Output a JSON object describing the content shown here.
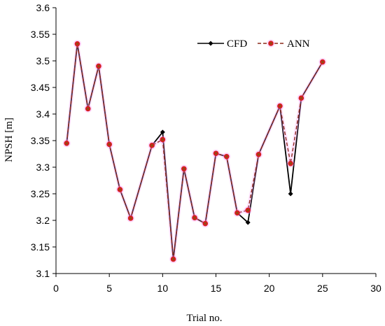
{
  "chart_data": {
    "type": "line",
    "title": "",
    "xlabel": "Trial no.",
    "ylabel": "NPSH [m]",
    "xlim": [
      0,
      30
    ],
    "ylim": [
      3.1,
      3.6
    ],
    "xticks": [
      0,
      5,
      10,
      15,
      20,
      25,
      30
    ],
    "yticks": [
      3.1,
      3.15,
      3.2,
      3.25,
      3.3,
      3.35,
      3.4,
      3.45,
      3.5,
      3.55,
      3.6
    ],
    "ytick_labels": [
      "3.1",
      "3.15",
      "3.2",
      "3.25",
      "3.3",
      "3.35",
      "3.4",
      "3.45",
      "3.5",
      "3.55",
      "3.6"
    ],
    "grid": false,
    "legend_position": "top-right",
    "series": [
      {
        "name": "CFD",
        "color": "#000000",
        "style": "solid",
        "marker": "diamond",
        "x": [
          1,
          2,
          3,
          4,
          5,
          6,
          7,
          9,
          10,
          11,
          12,
          13,
          14,
          15,
          16,
          17,
          18,
          19,
          21,
          22,
          23,
          25
        ],
        "y": [
          3.345,
          3.532,
          3.41,
          3.49,
          3.343,
          3.258,
          3.204,
          3.341,
          3.366,
          3.127,
          3.297,
          3.205,
          3.194,
          3.326,
          3.32,
          3.214,
          3.196,
          3.324,
          3.415,
          3.25,
          3.43,
          3.498
        ]
      },
      {
        "name": "ANN",
        "color": "#8b2a1a",
        "style": "dashed",
        "marker": "circle",
        "marker_color": "#d42020",
        "x": [
          1,
          2,
          3,
          4,
          5,
          6,
          7,
          9,
          10,
          11,
          12,
          13,
          14,
          15,
          16,
          17,
          18,
          19,
          21,
          22,
          23,
          25
        ],
        "y": [
          3.345,
          3.532,
          3.41,
          3.49,
          3.343,
          3.258,
          3.204,
          3.341,
          3.352,
          3.127,
          3.297,
          3.205,
          3.194,
          3.326,
          3.32,
          3.214,
          3.219,
          3.324,
          3.415,
          3.307,
          3.43,
          3.498
        ]
      }
    ]
  }
}
